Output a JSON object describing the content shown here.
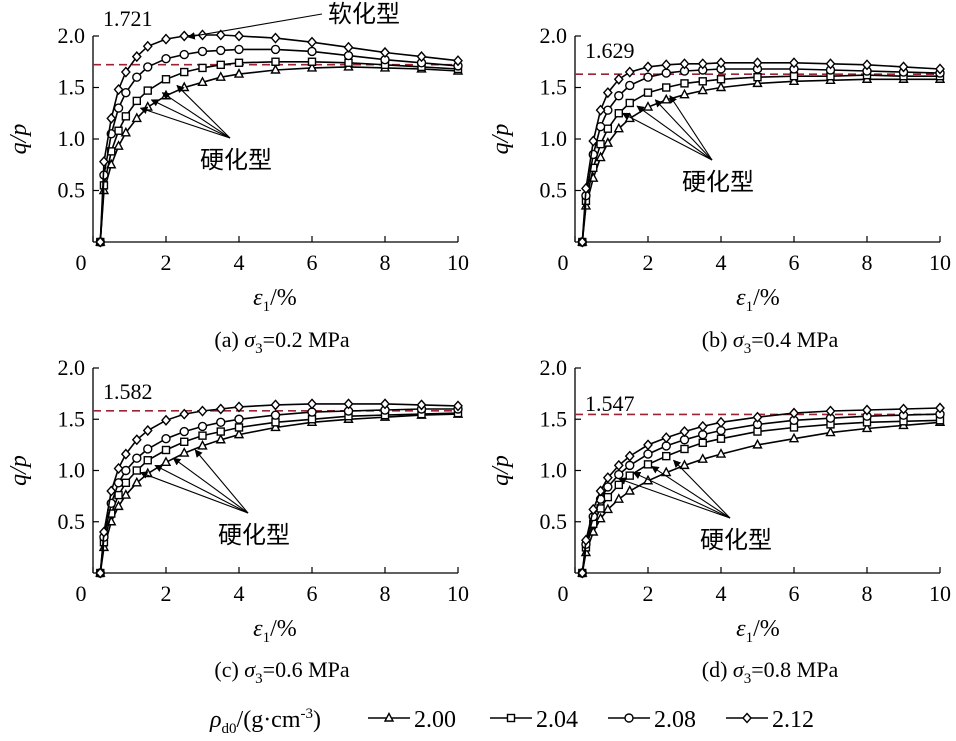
{
  "legend": {
    "title_symbol": "ρ",
    "title_sub": "d0",
    "title_unit": "/(g·cm",
    "title_unit_exp": "-3",
    "title_unit_close": ")",
    "entries": [
      {
        "label": "2.00",
        "marker": "triangle"
      },
      {
        "label": "2.04",
        "marker": "square"
      },
      {
        "label": "2.08",
        "marker": "circle"
      },
      {
        "label": "2.12",
        "marker": "diamond"
      }
    ]
  },
  "colors": {
    "series": "#000000",
    "reference_line": "#9b2335"
  },
  "chart_data": [
    {
      "type": "line",
      "panel_letter": "(a)",
      "caption_symbol": "σ",
      "caption_sub": "3",
      "caption_value": "=0.2 MPa",
      "xlabel_symbol": "ε",
      "xlabel_sub": "1",
      "xlabel_unit": "/%",
      "ylabel": "q/p",
      "xlim": [
        0,
        10
      ],
      "ylim": [
        0,
        2.0
      ],
      "xticks": [
        "0",
        "2",
        "4",
        "6",
        "8",
        "10"
      ],
      "yticks": [
        "0.5",
        "1.0",
        "1.5",
        "2.0"
      ],
      "reference_line": {
        "y": 1.721,
        "label": "1.721"
      },
      "annotations": [
        {
          "text": "软化型",
          "curve": "softening",
          "arrows_to": [
            {
              "x": 2.6,
              "y": 1.99
            }
          ]
        },
        {
          "text": "硬化型",
          "curve": "hardening",
          "arrows_to": [
            {
              "x": 1.3,
              "y": 1.3
            },
            {
              "x": 1.6,
              "y": 1.38
            },
            {
              "x": 1.9,
              "y": 1.45
            },
            {
              "x": 2.3,
              "y": 1.52
            }
          ]
        }
      ],
      "series": [
        {
          "name": "2.00",
          "marker": "triangle",
          "x": [
            0.2,
            0.3,
            0.5,
            0.7,
            0.9,
            1.2,
            1.5,
            2.0,
            2.5,
            3.0,
            3.5,
            4.0,
            5.0,
            6.0,
            7.0,
            8.0,
            9.0,
            10.0
          ],
          "y": [
            0,
            0.5,
            0.75,
            0.93,
            1.06,
            1.2,
            1.31,
            1.42,
            1.5,
            1.55,
            1.6,
            1.63,
            1.67,
            1.69,
            1.7,
            1.69,
            1.68,
            1.66
          ]
        },
        {
          "name": "2.04",
          "marker": "square",
          "x": [
            0.2,
            0.3,
            0.5,
            0.7,
            0.9,
            1.2,
            1.5,
            2.0,
            2.5,
            3.0,
            3.5,
            4.0,
            5.0,
            6.0,
            7.0,
            8.0,
            9.0,
            10.0
          ],
          "y": [
            0,
            0.55,
            0.88,
            1.08,
            1.22,
            1.37,
            1.47,
            1.58,
            1.65,
            1.69,
            1.72,
            1.74,
            1.75,
            1.75,
            1.74,
            1.72,
            1.7,
            1.68
          ]
        },
        {
          "name": "2.08",
          "marker": "circle",
          "x": [
            0.2,
            0.3,
            0.5,
            0.7,
            0.9,
            1.2,
            1.5,
            2.0,
            2.5,
            3.0,
            3.5,
            4.0,
            5.0,
            6.0,
            7.0,
            8.0,
            9.0,
            10.0
          ],
          "y": [
            0,
            0.65,
            1.05,
            1.3,
            1.45,
            1.6,
            1.7,
            1.78,
            1.82,
            1.85,
            1.86,
            1.87,
            1.87,
            1.85,
            1.81,
            1.77,
            1.74,
            1.71
          ]
        },
        {
          "name": "2.12",
          "marker": "diamond",
          "x": [
            0.2,
            0.3,
            0.5,
            0.7,
            0.9,
            1.2,
            1.5,
            2.0,
            2.5,
            3.0,
            3.5,
            4.0,
            5.0,
            6.0,
            7.0,
            8.0,
            9.0,
            10.0
          ],
          "y": [
            0,
            0.78,
            1.2,
            1.48,
            1.65,
            1.8,
            1.9,
            1.97,
            2.0,
            2.01,
            2.01,
            2.0,
            1.98,
            1.94,
            1.89,
            1.84,
            1.8,
            1.76
          ]
        }
      ]
    },
    {
      "type": "line",
      "panel_letter": "(b)",
      "caption_symbol": "σ",
      "caption_sub": "3",
      "caption_value": "=0.4 MPa",
      "xlabel_symbol": "ε",
      "xlabel_sub": "1",
      "xlabel_unit": "/%",
      "ylabel": "q/p",
      "xlim": [
        0,
        10
      ],
      "ylim": [
        0,
        2.0
      ],
      "xticks": [
        "0",
        "2",
        "4",
        "6",
        "8",
        "10"
      ],
      "yticks": [
        "0.5",
        "1.0",
        "1.5",
        "2.0"
      ],
      "reference_line": {
        "y": 1.629,
        "label": "1.629"
      },
      "annotations": [
        {
          "text": "硬化型",
          "curve": "hardening",
          "arrows_to": [
            {
              "x": 1.3,
              "y": 1.25
            },
            {
              "x": 1.7,
              "y": 1.32
            },
            {
              "x": 2.2,
              "y": 1.38
            },
            {
              "x": 2.6,
              "y": 1.42
            }
          ]
        }
      ],
      "series": [
        {
          "name": "2.00",
          "marker": "triangle",
          "x": [
            0.2,
            0.3,
            0.5,
            0.7,
            0.9,
            1.2,
            1.5,
            2.0,
            2.5,
            3.0,
            3.5,
            4.0,
            5.0,
            6.0,
            7.0,
            8.0,
            9.0,
            10.0
          ],
          "y": [
            0,
            0.35,
            0.62,
            0.82,
            0.96,
            1.1,
            1.2,
            1.31,
            1.38,
            1.43,
            1.47,
            1.5,
            1.54,
            1.56,
            1.57,
            1.58,
            1.58,
            1.58
          ]
        },
        {
          "name": "2.04",
          "marker": "square",
          "x": [
            0.2,
            0.3,
            0.5,
            0.7,
            0.9,
            1.2,
            1.5,
            2.0,
            2.5,
            3.0,
            3.5,
            4.0,
            5.0,
            6.0,
            7.0,
            8.0,
            9.0,
            10.0
          ],
          "y": [
            0,
            0.4,
            0.72,
            0.95,
            1.1,
            1.25,
            1.35,
            1.45,
            1.5,
            1.54,
            1.56,
            1.58,
            1.6,
            1.61,
            1.61,
            1.62,
            1.61,
            1.61
          ]
        },
        {
          "name": "2.08",
          "marker": "circle",
          "x": [
            0.2,
            0.3,
            0.5,
            0.7,
            0.9,
            1.2,
            1.5,
            2.0,
            2.5,
            3.0,
            3.5,
            4.0,
            5.0,
            6.0,
            7.0,
            8.0,
            9.0,
            10.0
          ],
          "y": [
            0,
            0.45,
            0.85,
            1.12,
            1.28,
            1.42,
            1.52,
            1.6,
            1.64,
            1.66,
            1.67,
            1.68,
            1.68,
            1.68,
            1.67,
            1.66,
            1.65,
            1.64
          ]
        },
        {
          "name": "2.12",
          "marker": "diamond",
          "x": [
            0.2,
            0.3,
            0.5,
            0.7,
            0.9,
            1.2,
            1.5,
            2.0,
            2.5,
            3.0,
            3.5,
            4.0,
            5.0,
            6.0,
            7.0,
            8.0,
            9.0,
            10.0
          ],
          "y": [
            0,
            0.52,
            0.98,
            1.28,
            1.45,
            1.58,
            1.65,
            1.7,
            1.72,
            1.73,
            1.73,
            1.74,
            1.74,
            1.74,
            1.73,
            1.72,
            1.7,
            1.68
          ]
        }
      ]
    },
    {
      "type": "line",
      "panel_letter": "(c)",
      "caption_symbol": "σ",
      "caption_sub": "3",
      "caption_value": "=0.6 MPa",
      "xlabel_symbol": "ε",
      "xlabel_sub": "1",
      "xlabel_unit": "/%",
      "ylabel": "q/p",
      "xlim": [
        0,
        10
      ],
      "ylim": [
        0,
        2.0
      ],
      "xticks": [
        "0",
        "2",
        "4",
        "6",
        "8",
        "10"
      ],
      "yticks": [
        "0.5",
        "1.0",
        "1.5",
        "2.0"
      ],
      "reference_line": {
        "y": 1.582,
        "label": "1.582"
      },
      "annotations": [
        {
          "text": "硬化型",
          "curve": "hardening",
          "arrows_to": [
            {
              "x": 1.3,
              "y": 0.98
            },
            {
              "x": 1.7,
              "y": 1.05
            },
            {
              "x": 2.2,
              "y": 1.12
            },
            {
              "x": 2.8,
              "y": 1.2
            }
          ]
        }
      ],
      "series": [
        {
          "name": "2.00",
          "marker": "triangle",
          "x": [
            0.2,
            0.3,
            0.5,
            0.7,
            0.9,
            1.2,
            1.5,
            2.0,
            2.5,
            3.0,
            3.5,
            4.0,
            5.0,
            6.0,
            7.0,
            8.0,
            9.0,
            10.0
          ],
          "y": [
            0,
            0.25,
            0.5,
            0.65,
            0.76,
            0.88,
            0.97,
            1.08,
            1.17,
            1.24,
            1.3,
            1.35,
            1.42,
            1.47,
            1.5,
            1.52,
            1.54,
            1.55
          ]
        },
        {
          "name": "2.04",
          "marker": "square",
          "x": [
            0.2,
            0.3,
            0.5,
            0.7,
            0.9,
            1.2,
            1.5,
            2.0,
            2.5,
            3.0,
            3.5,
            4.0,
            5.0,
            6.0,
            7.0,
            8.0,
            9.0,
            10.0
          ],
          "y": [
            0,
            0.3,
            0.58,
            0.76,
            0.88,
            1.0,
            1.1,
            1.2,
            1.28,
            1.34,
            1.38,
            1.42,
            1.47,
            1.5,
            1.53,
            1.54,
            1.55,
            1.56
          ]
        },
        {
          "name": "2.08",
          "marker": "circle",
          "x": [
            0.2,
            0.3,
            0.5,
            0.7,
            0.9,
            1.2,
            1.5,
            2.0,
            2.5,
            3.0,
            3.5,
            4.0,
            5.0,
            6.0,
            7.0,
            8.0,
            9.0,
            10.0
          ],
          "y": [
            0,
            0.35,
            0.68,
            0.88,
            1.0,
            1.12,
            1.21,
            1.31,
            1.38,
            1.43,
            1.47,
            1.5,
            1.54,
            1.57,
            1.58,
            1.59,
            1.6,
            1.6
          ]
        },
        {
          "name": "2.12",
          "marker": "diamond",
          "x": [
            0.2,
            0.3,
            0.5,
            0.7,
            0.9,
            1.2,
            1.5,
            2.0,
            2.5,
            3.0,
            3.5,
            4.0,
            5.0,
            6.0,
            7.0,
            8.0,
            9.0,
            10.0
          ],
          "y": [
            0,
            0.4,
            0.8,
            1.02,
            1.16,
            1.3,
            1.39,
            1.49,
            1.55,
            1.58,
            1.6,
            1.62,
            1.64,
            1.65,
            1.65,
            1.65,
            1.64,
            1.63
          ]
        }
      ]
    },
    {
      "type": "line",
      "panel_letter": "(d)",
      "caption_symbol": "σ",
      "caption_sub": "3",
      "caption_value": "=0.8 MPa",
      "xlabel_symbol": "ε",
      "xlabel_sub": "1",
      "xlabel_unit": "/%",
      "ylabel": "q/p",
      "xlim": [
        0,
        10
      ],
      "ylim": [
        0,
        2.0
      ],
      "xticks": [
        "0",
        "2",
        "4",
        "6",
        "8",
        "10"
      ],
      "yticks": [
        "0.5",
        "1.0",
        "1.5",
        "2.0"
      ],
      "reference_line": {
        "y": 1.547,
        "label": "1.547"
      },
      "annotations": [
        {
          "text": "硬化型",
          "curve": "hardening",
          "arrows_to": [
            {
              "x": 1.2,
              "y": 0.92
            },
            {
              "x": 1.6,
              "y": 0.98
            },
            {
              "x": 2.1,
              "y": 1.04
            },
            {
              "x": 2.7,
              "y": 1.1
            }
          ]
        }
      ],
      "series": [
        {
          "name": "2.00",
          "marker": "triangle",
          "x": [
            0.2,
            0.3,
            0.5,
            0.7,
            0.9,
            1.2,
            1.5,
            2.0,
            2.5,
            3.0,
            3.5,
            4.0,
            5.0,
            6.0,
            7.0,
            8.0,
            9.0,
            10.0
          ],
          "y": [
            0,
            0.2,
            0.4,
            0.53,
            0.62,
            0.72,
            0.8,
            0.9,
            0.98,
            1.05,
            1.11,
            1.16,
            1.25,
            1.31,
            1.37,
            1.41,
            1.44,
            1.47
          ]
        },
        {
          "name": "2.04",
          "marker": "square",
          "x": [
            0.2,
            0.3,
            0.5,
            0.7,
            0.9,
            1.2,
            1.5,
            2.0,
            2.5,
            3.0,
            3.5,
            4.0,
            5.0,
            6.0,
            7.0,
            8.0,
            9.0,
            10.0
          ],
          "y": [
            0,
            0.25,
            0.48,
            0.63,
            0.74,
            0.86,
            0.95,
            1.06,
            1.14,
            1.21,
            1.27,
            1.31,
            1.38,
            1.42,
            1.45,
            1.47,
            1.48,
            1.49
          ]
        },
        {
          "name": "2.08",
          "marker": "circle",
          "x": [
            0.2,
            0.3,
            0.5,
            0.7,
            0.9,
            1.2,
            1.5,
            2.0,
            2.5,
            3.0,
            3.5,
            4.0,
            5.0,
            6.0,
            7.0,
            8.0,
            9.0,
            10.0
          ],
          "y": [
            0,
            0.28,
            0.55,
            0.72,
            0.84,
            0.96,
            1.05,
            1.16,
            1.24,
            1.3,
            1.35,
            1.39,
            1.45,
            1.49,
            1.51,
            1.53,
            1.54,
            1.55
          ]
        },
        {
          "name": "2.12",
          "marker": "diamond",
          "x": [
            0.2,
            0.3,
            0.5,
            0.7,
            0.9,
            1.2,
            1.5,
            2.0,
            2.5,
            3.0,
            3.5,
            4.0,
            5.0,
            6.0,
            7.0,
            8.0,
            9.0,
            10.0
          ],
          "y": [
            0,
            0.32,
            0.62,
            0.8,
            0.93,
            1.05,
            1.14,
            1.25,
            1.32,
            1.38,
            1.43,
            1.47,
            1.52,
            1.56,
            1.58,
            1.59,
            1.6,
            1.61
          ]
        }
      ]
    }
  ]
}
